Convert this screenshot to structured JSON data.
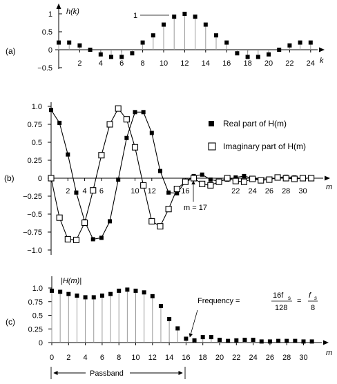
{
  "chart_data": [
    {
      "type": "scatter",
      "panel_label": "(a)",
      "ylabel": "h(k)",
      "xlabel": "k",
      "x_ticks": [
        2,
        4,
        6,
        8,
        10,
        12,
        14,
        16,
        18,
        20,
        22,
        24
      ],
      "y_ticks": [
        {
          "value": 1,
          "label": "1"
        },
        {
          "value": 0.5,
          "label": "0.5"
        },
        {
          "value": 0,
          "label": "0"
        },
        {
          "value": -0.5,
          "label": "−0.5"
        }
      ],
      "ylim": [
        -0.5,
        1
      ],
      "x": [
        0,
        1,
        2,
        3,
        4,
        5,
        6,
        7,
        8,
        9,
        10,
        11,
        12,
        13,
        14,
        15,
        16,
        17,
        18,
        19,
        20,
        21,
        22,
        23,
        24
      ],
      "values": [
        0.2,
        0.2,
        0.12,
        0,
        -0.13,
        -0.2,
        -0.2,
        -0.1,
        0.2,
        0.4,
        0.7,
        0.92,
        1.0,
        0.92,
        0.7,
        0.4,
        0.2,
        -0.1,
        -0.2,
        -0.2,
        -0.13,
        0,
        0.12,
        0.2,
        0.2
      ],
      "stems": true,
      "annotation": "1"
    },
    {
      "type": "line",
      "panel_label": "(b)",
      "xlabel": "m",
      "x_ticks": [
        2,
        4,
        6,
        10,
        12,
        16,
        22,
        24,
        26,
        28,
        30
      ],
      "y_ticks": [
        {
          "value": 1,
          "label": "1.0"
        },
        {
          "value": 0.75,
          "label": "0.75"
        },
        {
          "value": 0.5,
          "label": "0.5"
        },
        {
          "value": 0.25,
          "label": "0.25"
        },
        {
          "value": 0,
          "label": "0"
        },
        {
          "value": -0.25,
          "label": "−0.25"
        },
        {
          "value": -0.5,
          "label": "−0.5"
        },
        {
          "value": -0.75,
          "label": "−0.75"
        },
        {
          "value": -1,
          "label": "−1.0"
        }
      ],
      "ylim": [
        -1,
        1
      ],
      "x": [
        0,
        1,
        2,
        3,
        4,
        5,
        6,
        7,
        8,
        9,
        10,
        11,
        12,
        13,
        14,
        15,
        16,
        17,
        18,
        19,
        20,
        21,
        22,
        23,
        24,
        25,
        26,
        27,
        28,
        29,
        30,
        31
      ],
      "series": [
        {
          "name": "Real part of H(m)",
          "values": [
            0.95,
            0.77,
            0.33,
            -0.2,
            -0.6,
            -0.85,
            -0.83,
            -0.6,
            -0.02,
            0.56,
            0.92,
            0.92,
            0.63,
            0.1,
            -0.2,
            -0.21,
            -0.05,
            0.03,
            0.05,
            -0.02,
            -0.04,
            -0.02,
            0.01,
            0.03,
            0,
            -0.02,
            -0.02,
            0.01,
            0.02,
            0.01,
            -0.01,
            0.01
          ]
        },
        {
          "name": "Imaginary part of H(m)",
          "values": [
            0,
            -0.55,
            -0.85,
            -0.86,
            -0.62,
            -0.17,
            0.32,
            0.75,
            0.97,
            0.82,
            0.43,
            -0.1,
            -0.6,
            -0.67,
            -0.43,
            -0.15,
            -0.05,
            0,
            -0.08,
            -0.1,
            -0.05,
            0,
            -0.04,
            -0.05,
            -0.01,
            -0.03,
            -0.02,
            0.01,
            0,
            -0.01,
            0,
            0
          ]
        }
      ],
      "annotation": "m = 17"
    },
    {
      "type": "scatter",
      "panel_label": "(c)",
      "ylabel": "|H(m)|",
      "xlabel": "m",
      "x_ticks": [
        0,
        2,
        4,
        6,
        8,
        10,
        12,
        14,
        16,
        18,
        20,
        22,
        24,
        26,
        28,
        30
      ],
      "y_ticks": [
        {
          "value": 1,
          "label": "1.0"
        },
        {
          "value": 0.75,
          "label": "0.75"
        },
        {
          "value": 0.5,
          "label": "0.5"
        },
        {
          "value": 0.25,
          "label": "0.25"
        },
        {
          "value": 0,
          "label": "0"
        }
      ],
      "ylim": [
        0,
        1
      ],
      "x": [
        0,
        1,
        2,
        3,
        4,
        5,
        6,
        7,
        8,
        9,
        10,
        11,
        12,
        13,
        14,
        15,
        16,
        17,
        18,
        19,
        20,
        21,
        22,
        23,
        24,
        25,
        26,
        27,
        28,
        29,
        30,
        31
      ],
      "values": [
        0.95,
        0.93,
        0.89,
        0.86,
        0.83,
        0.83,
        0.86,
        0.89,
        0.95,
        0.97,
        0.95,
        0.92,
        0.85,
        0.67,
        0.43,
        0.26,
        0.07,
        0.04,
        0.1,
        0.1,
        0.05,
        0.03,
        0.04,
        0.05,
        0.05,
        0.02,
        0.02,
        0.03,
        0.03,
        0.03,
        0.02,
        0.02
      ],
      "stems": true,
      "annotation": {
        "prefix": "Frequency =",
        "frac1_num": "16f",
        "frac1_num_sub": "s",
        "frac1_den": "128",
        "equals": "=",
        "frac2_num": "f",
        "frac2_num_sub": "s",
        "frac2_den": "8"
      },
      "passband_label": "Passband"
    }
  ]
}
